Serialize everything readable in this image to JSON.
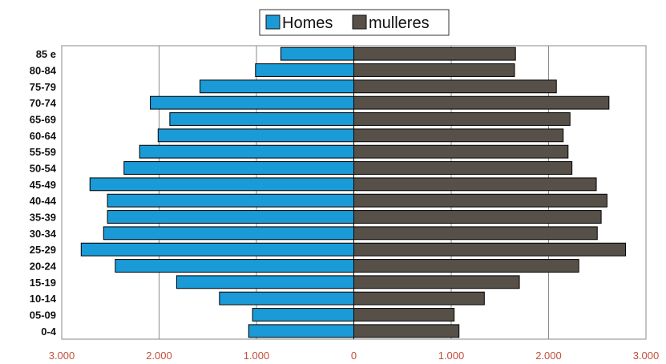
{
  "chart_data": {
    "type": "bar",
    "orientation": "horizontal",
    "layout": "population-pyramid",
    "title": "",
    "xlabel": "",
    "ylabel": "",
    "categories": [
      "85 e",
      "80-84",
      "75-79",
      "70-74",
      "65-69",
      "60-64",
      "55-59",
      "50-54",
      "45-49",
      "40-44",
      "35-39",
      "30-34",
      "25-29",
      "20-24",
      "15-19",
      "10-14",
      "05-09",
      "0-4"
    ],
    "x_tick_labels": [
      "3.000",
      "2.000",
      "1.000",
      "0",
      "1.000",
      "2.000",
      "3.000"
    ],
    "x_tick_values": [
      -3000,
      -2000,
      -1000,
      0,
      1000,
      2000,
      3000
    ],
    "xlim": [
      -3000,
      3000
    ],
    "grid": true,
    "legend_position": "top",
    "series": [
      {
        "name": "Homes",
        "color": "#1a9ad6",
        "values": [
          750,
          1010,
          1580,
          2090,
          1890,
          2010,
          2200,
          2360,
          2710,
          2530,
          2530,
          2570,
          2800,
          2450,
          1820,
          1380,
          1040,
          1080
        ]
      },
      {
        "name": "mulleres",
        "color": "#575049",
        "values": [
          1660,
          1650,
          2080,
          2620,
          2220,
          2150,
          2200,
          2240,
          2490,
          2600,
          2540,
          2500,
          2790,
          2310,
          1700,
          1340,
          1030,
          1080
        ]
      }
    ]
  }
}
